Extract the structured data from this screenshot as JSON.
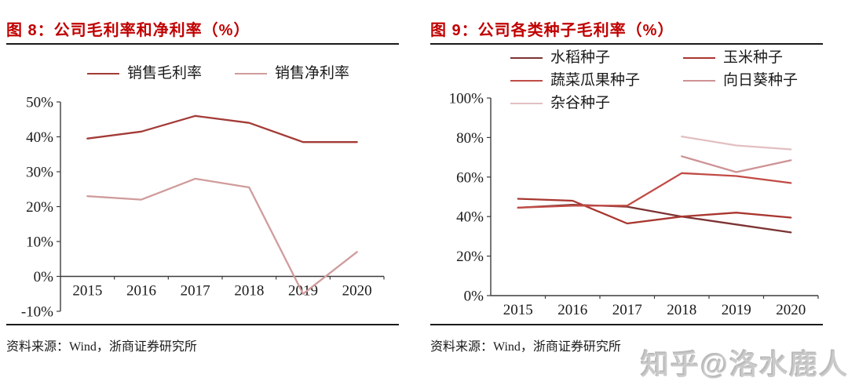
{
  "watermark": {
    "text": "知乎@洛水鹿人",
    "color": "#bcbcbc"
  },
  "colors": {
    "title": "#c00000",
    "axis": "#3d3d3d",
    "text": "#1a1a1a"
  },
  "figures": [
    {
      "title": "图 8：公司毛利率和净利率（%）",
      "source": "资料来源：Wind，浙商证券研究所"
    },
    {
      "title": "图 9：公司各类种子毛利率（%）",
      "source": "资料来源：Wind，浙商证券研究所"
    }
  ],
  "chart_data": [
    {
      "type": "line",
      "title": "公司毛利率和净利率（%）",
      "categories": [
        "2015",
        "2016",
        "2017",
        "2018",
        "2019",
        "2020"
      ],
      "series": [
        {
          "name": "销售毛利率",
          "color": "#a33b36",
          "values": [
            39.5,
            41.5,
            46,
            44,
            38.5,
            38.5
          ]
        },
        {
          "name": "销售净利率",
          "color": "#d09c9c",
          "values": [
            23,
            22,
            28,
            25.5,
            -5,
            7
          ]
        }
      ],
      "ylim": [
        -10,
        50
      ],
      "ytick_step": 10,
      "ytick_suffix": "%",
      "grid": false,
      "legend_position": "top"
    },
    {
      "type": "line",
      "title": "公司各类种子毛利率（%）",
      "categories": [
        "2015",
        "2016",
        "2017",
        "2018",
        "2019",
        "2020"
      ],
      "series": [
        {
          "name": "水稻种子",
          "color": "#7c3433",
          "values": [
            44.5,
            46,
            45,
            40,
            36,
            32
          ]
        },
        {
          "name": "玉米种子",
          "color": "#a8362f",
          "values": [
            49,
            48,
            36.5,
            40,
            42,
            39.5
          ]
        },
        {
          "name": "蔬菜瓜果种子",
          "color": "#c14b45",
          "values": [
            44.5,
            45.5,
            45.5,
            62,
            60.5,
            57
          ]
        },
        {
          "name": "向日葵种子",
          "color": "#ce9294",
          "values": [
            null,
            null,
            null,
            70.5,
            62.5,
            68.5
          ]
        },
        {
          "name": "杂谷种子",
          "color": "#e2bfc1",
          "values": [
            null,
            null,
            null,
            80.5,
            76,
            74
          ]
        }
      ],
      "ylim": [
        0,
        100
      ],
      "ytick_step": 20,
      "ytick_suffix": "%",
      "grid": false,
      "legend_position": "top"
    }
  ]
}
